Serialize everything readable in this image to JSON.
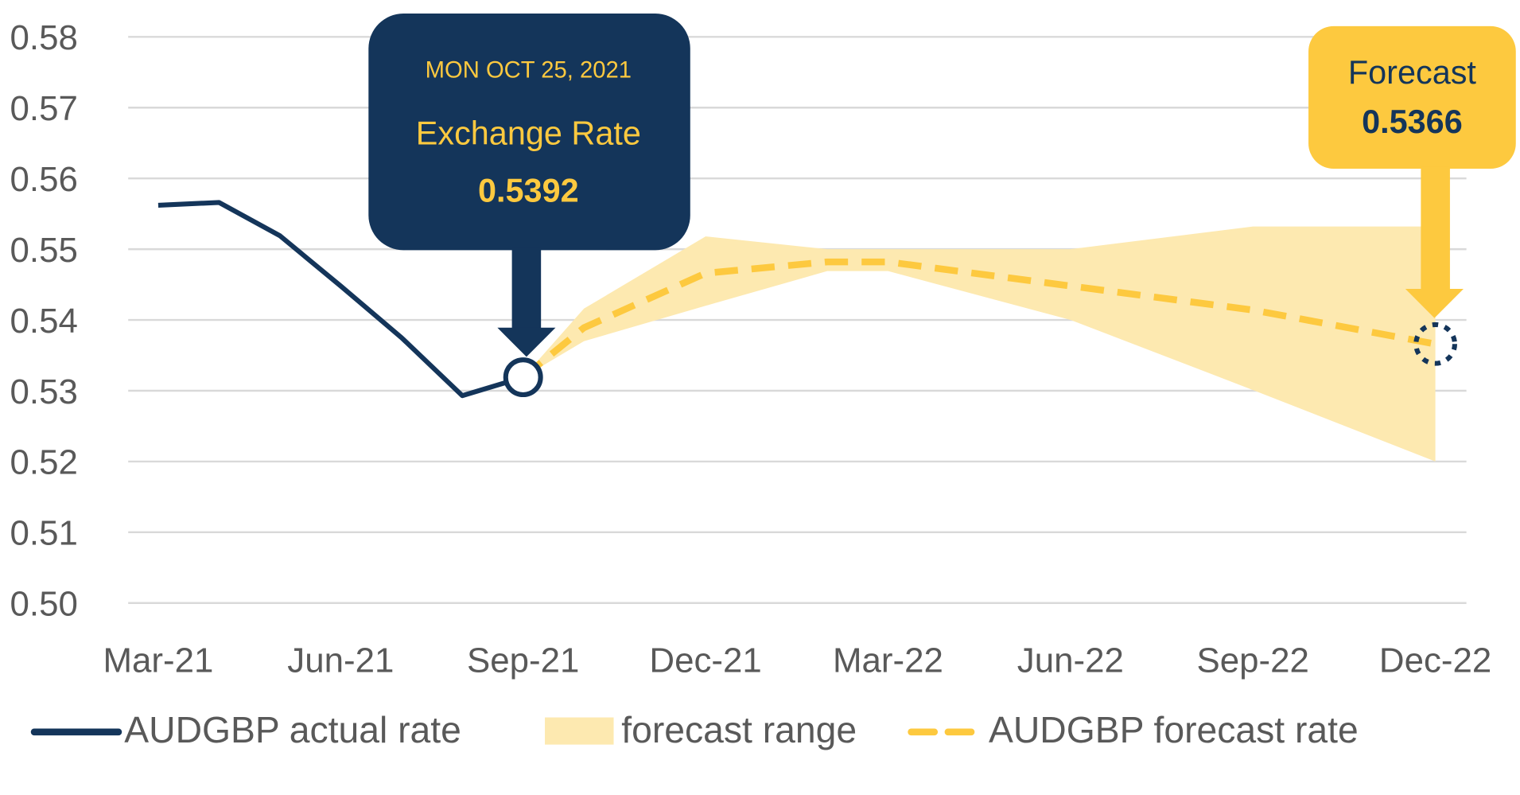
{
  "chart_data": {
    "type": "line",
    "title": "",
    "xlabel": "",
    "ylabel": "",
    "ylim": [
      0.5,
      0.58
    ],
    "y_ticks": [
      "0.58",
      "0.57",
      "0.56",
      "0.55",
      "0.54",
      "0.53",
      "0.52",
      "0.51",
      "0.50"
    ],
    "x_ticks": [
      "Mar-21",
      "Jun-21",
      "Sep-21",
      "Dec-21",
      "Mar-22",
      "Jun-22",
      "Sep-22",
      "Dec-22"
    ],
    "grid": true,
    "legend_position": "bottom",
    "colors": {
      "actual": "#14355a",
      "forecast": "#fdc93f",
      "range": "#fde9b0",
      "grid": "#d9d9d9"
    },
    "series": [
      {
        "name": "AUDGBP actual rate",
        "style": "solid",
        "x": [
          "2021-03",
          "2021-04",
          "2021-05",
          "2021-06",
          "2021-07",
          "2021-08",
          "2021-09"
        ],
        "y": [
          0.5562,
          0.5566,
          0.5519,
          0.5448,
          0.5375,
          0.5293,
          0.5319
        ]
      },
      {
        "name": "forecast range",
        "style": "band",
        "x": [
          "2021-09",
          "2021-10",
          "2021-12",
          "2022-02",
          "2022-03",
          "2022-06",
          "2022-09",
          "2022-12"
        ],
        "low": [
          0.5319,
          0.537,
          0.542,
          0.5469,
          0.5469,
          0.54,
          0.5301,
          0.52
        ],
        "high": [
          0.5319,
          0.5416,
          0.5518,
          0.55,
          0.55,
          0.55,
          0.5532,
          0.5532
        ]
      },
      {
        "name": "AUDGBP forecast rate",
        "style": "dashed",
        "x": [
          "2021-09",
          "2021-10",
          "2021-12",
          "2022-02",
          "2022-03",
          "2022-06",
          "2022-09",
          "2022-12"
        ],
        "y": [
          0.5319,
          0.5389,
          0.5466,
          0.5482,
          0.5482,
          0.5448,
          0.5414,
          0.5366
        ]
      }
    ],
    "annotations": {
      "current": {
        "date": "MON OCT 25, 2021",
        "label": "Exchange Rate",
        "value": "0.5392"
      },
      "forecast": {
        "label": "Forecast",
        "value": "0.5366"
      }
    }
  }
}
